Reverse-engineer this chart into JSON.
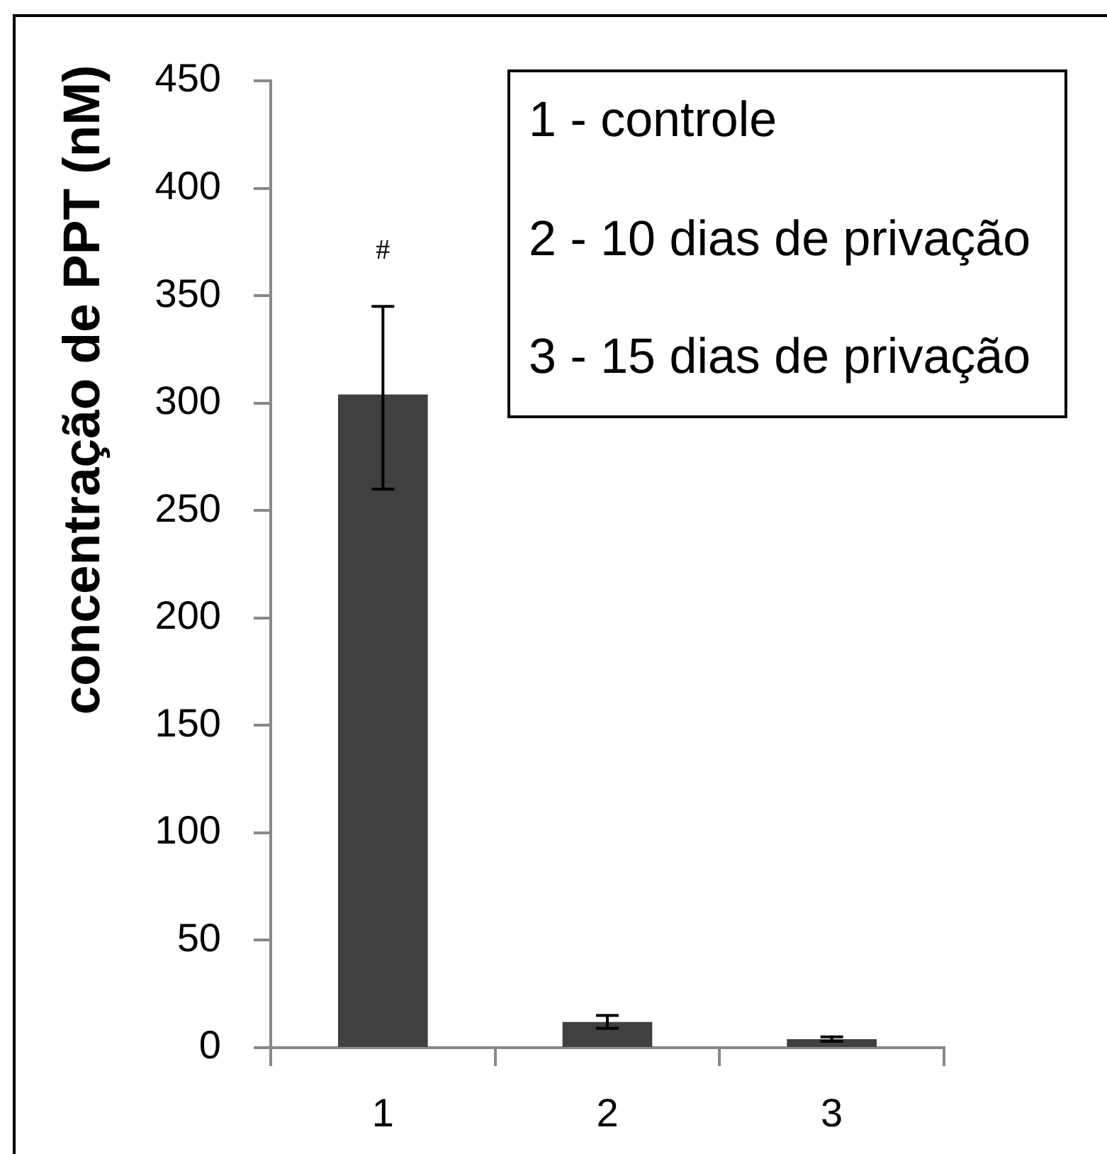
{
  "chart_data": {
    "type": "bar",
    "ylabel": "concentração de PPT (nM)",
    "categories": [
      "1",
      "2",
      "3"
    ],
    "values": [
      304,
      12,
      4
    ],
    "color": "#404040",
    "errors": [
      [
        260,
        345
      ],
      3,
      1
    ],
    "ylim": [
      0,
      450
    ],
    "yticks": [
      0,
      50,
      100,
      150,
      200,
      250,
      300,
      350,
      400,
      450
    ],
    "grid": false,
    "legend": false,
    "annotations": [
      "#",
      "1 - controle",
      "2 - 10 dias de privação",
      "3 - 15 dias de privação"
    ]
  }
}
